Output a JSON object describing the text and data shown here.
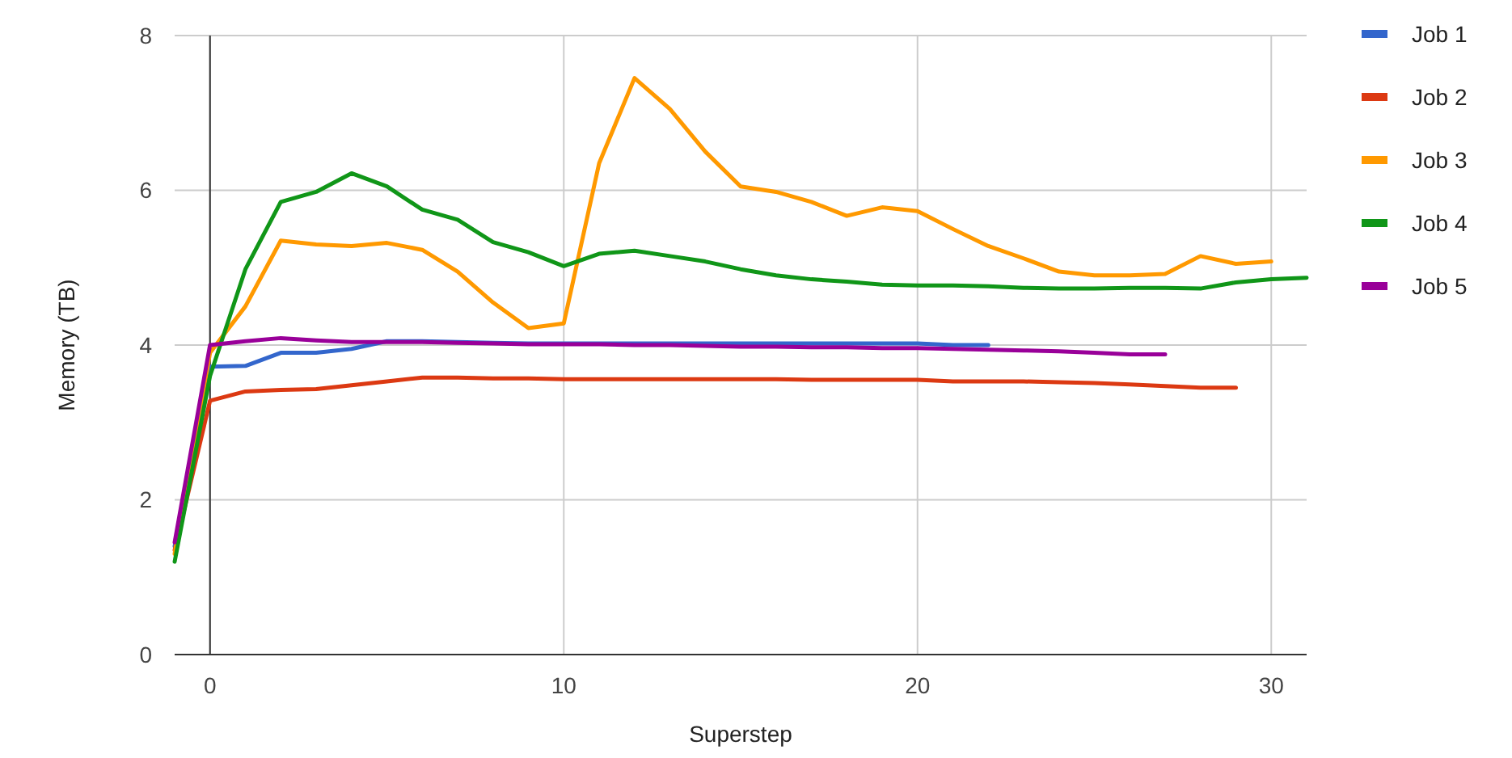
{
  "chart_data": {
    "type": "line",
    "xlabel": "Superstep",
    "ylabel": "Memory (TB)",
    "xlim": [
      -1,
      31
    ],
    "xticks": [
      0,
      10,
      20,
      30
    ],
    "ylim": [
      0,
      8
    ],
    "yticks": [
      0,
      2,
      4,
      6,
      8
    ],
    "grid": true,
    "legend": "right",
    "series": [
      {
        "name": "Job 1",
        "color": "#3366cc",
        "x": [
          -1,
          0,
          1,
          2,
          3,
          4,
          5,
          6,
          7,
          8,
          9,
          10,
          11,
          12,
          13,
          14,
          15,
          16,
          17,
          18,
          19,
          20,
          21,
          22
        ],
        "values": [
          1.4,
          3.72,
          3.73,
          3.9,
          3.9,
          3.95,
          4.05,
          4.05,
          4.04,
          4.03,
          4.02,
          4.02,
          4.02,
          4.02,
          4.02,
          4.02,
          4.02,
          4.02,
          4.02,
          4.02,
          4.02,
          4.02,
          4.0,
          4.0
        ]
      },
      {
        "name": "Job 2",
        "color": "#dc3912",
        "x": [
          -1,
          0,
          1,
          2,
          3,
          4,
          5,
          6,
          7,
          8,
          9,
          10,
          11,
          12,
          13,
          14,
          15,
          16,
          17,
          18,
          19,
          20,
          21,
          22,
          23,
          24,
          25,
          26,
          27,
          28,
          29
        ],
        "values": [
          1.35,
          3.28,
          3.4,
          3.42,
          3.43,
          3.48,
          3.53,
          3.58,
          3.58,
          3.57,
          3.57,
          3.56,
          3.56,
          3.56,
          3.56,
          3.56,
          3.56,
          3.56,
          3.55,
          3.55,
          3.55,
          3.55,
          3.53,
          3.53,
          3.53,
          3.52,
          3.51,
          3.49,
          3.47,
          3.45,
          3.45
        ]
      },
      {
        "name": "Job 3",
        "color": "#ff9900",
        "x": [
          -1,
          0,
          1,
          2,
          3,
          4,
          5,
          6,
          7,
          8,
          9,
          10,
          11,
          12,
          13,
          14,
          15,
          16,
          17,
          18,
          19,
          20,
          21,
          22,
          23,
          24,
          25,
          26,
          27,
          28,
          29,
          30
        ],
        "values": [
          1.3,
          3.9,
          4.5,
          5.35,
          5.3,
          5.28,
          5.32,
          5.23,
          4.95,
          4.55,
          4.22,
          4.28,
          6.35,
          7.45,
          7.05,
          6.5,
          6.05,
          5.98,
          5.85,
          5.67,
          5.78,
          5.73,
          5.5,
          5.28,
          5.12,
          4.95,
          4.9,
          4.9,
          4.92,
          5.15,
          5.05,
          5.08
        ]
      },
      {
        "name": "Job 4",
        "color": "#109618",
        "x": [
          -1,
          0,
          1,
          2,
          3,
          4,
          5,
          6,
          7,
          8,
          9,
          10,
          11,
          12,
          13,
          14,
          15,
          16,
          17,
          18,
          19,
          20,
          21,
          22,
          23,
          24,
          25,
          26,
          27,
          28,
          29,
          30,
          31
        ],
        "values": [
          1.2,
          3.6,
          4.98,
          5.85,
          5.98,
          6.22,
          6.05,
          5.75,
          5.62,
          5.33,
          5.2,
          5.02,
          5.18,
          5.22,
          5.15,
          5.08,
          4.98,
          4.9,
          4.85,
          4.82,
          4.78,
          4.77,
          4.77,
          4.76,
          4.74,
          4.73,
          4.73,
          4.74,
          4.74,
          4.73,
          4.81,
          4.85,
          4.87
        ]
      },
      {
        "name": "Job 5",
        "color": "#990099",
        "x": [
          -1,
          0,
          1,
          2,
          3,
          4,
          5,
          6,
          7,
          8,
          9,
          10,
          11,
          12,
          13,
          14,
          15,
          16,
          17,
          18,
          19,
          20,
          21,
          22,
          23,
          24,
          25,
          26,
          27
        ],
        "values": [
          1.45,
          4.0,
          4.05,
          4.09,
          4.06,
          4.04,
          4.04,
          4.04,
          4.03,
          4.02,
          4.01,
          4.01,
          4.01,
          4.0,
          4.0,
          3.99,
          3.98,
          3.98,
          3.97,
          3.97,
          3.96,
          3.96,
          3.95,
          3.94,
          3.93,
          3.92,
          3.9,
          3.88,
          3.88
        ]
      }
    ]
  }
}
